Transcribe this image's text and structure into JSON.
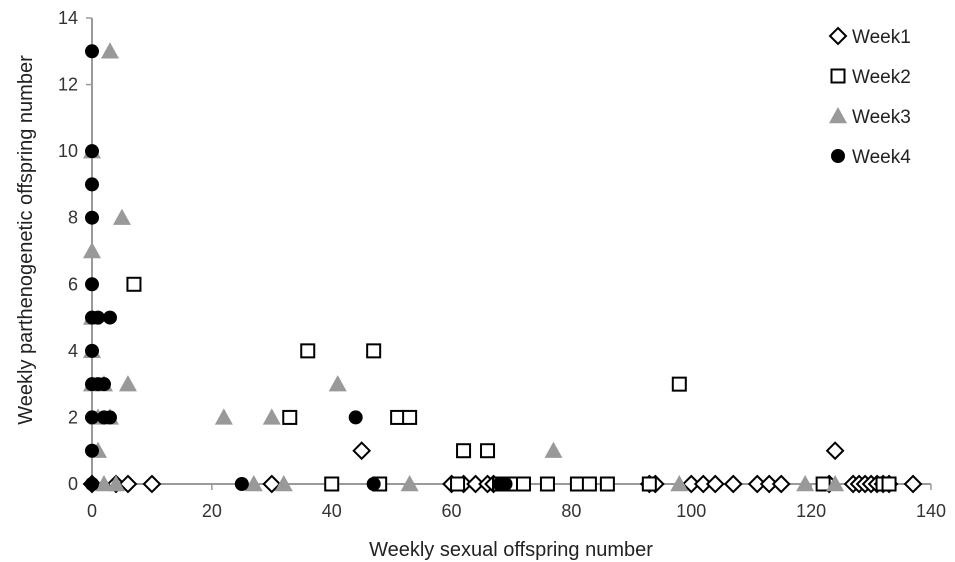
{
  "chart_data": {
    "type": "scatter",
    "xlabel": "Weekly sexual offspring number",
    "ylabel": "Weekly parthenogenetic offspring number",
    "xlim": [
      0,
      140
    ],
    "ylim": [
      0,
      14
    ],
    "xticks": [
      0,
      20,
      40,
      60,
      80,
      100,
      120,
      140
    ],
    "yticks": [
      0,
      2,
      4,
      6,
      8,
      10,
      12,
      14
    ],
    "grid": false,
    "legend_position": "top-right",
    "series": [
      {
        "name": "Week1",
        "marker": "diamond-open",
        "color": "#000000",
        "points": [
          [
            0,
            0
          ],
          [
            4,
            0
          ],
          [
            6,
            0
          ],
          [
            10,
            0
          ],
          [
            30,
            0
          ],
          [
            45,
            1
          ],
          [
            60,
            0
          ],
          [
            62,
            0
          ],
          [
            64,
            0
          ],
          [
            66,
            0
          ],
          [
            67,
            0
          ],
          [
            93,
            0
          ],
          [
            94,
            0
          ],
          [
            100,
            0
          ],
          [
            102,
            0
          ],
          [
            104,
            0
          ],
          [
            107,
            0
          ],
          [
            111,
            0
          ],
          [
            113,
            0
          ],
          [
            115,
            0
          ],
          [
            123,
            0
          ],
          [
            124,
            1
          ],
          [
            127,
            0
          ],
          [
            128,
            0
          ],
          [
            129,
            0
          ],
          [
            130,
            0
          ],
          [
            131,
            0
          ],
          [
            132,
            0
          ],
          [
            133,
            0
          ],
          [
            137,
            0
          ]
        ]
      },
      {
        "name": "Week2",
        "marker": "square-open",
        "color": "#000000",
        "points": [
          [
            7,
            6
          ],
          [
            33,
            2
          ],
          [
            36,
            4
          ],
          [
            40,
            0
          ],
          [
            47,
            4
          ],
          [
            48,
            0
          ],
          [
            51,
            2
          ],
          [
            53,
            2
          ],
          [
            61,
            0
          ],
          [
            62,
            1
          ],
          [
            66,
            1
          ],
          [
            68,
            0
          ],
          [
            70,
            0
          ],
          [
            72,
            0
          ],
          [
            76,
            0
          ],
          [
            81,
            0
          ],
          [
            83,
            0
          ],
          [
            86,
            0
          ],
          [
            93,
            0
          ],
          [
            98,
            3
          ],
          [
            122,
            0
          ],
          [
            132,
            0
          ],
          [
            133,
            0
          ]
        ]
      },
      {
        "name": "Week3",
        "marker": "triangle-filled",
        "color": "#999999",
        "points": [
          [
            0,
            10
          ],
          [
            0,
            7
          ],
          [
            0,
            5
          ],
          [
            0,
            4
          ],
          [
            0,
            3
          ],
          [
            1,
            2
          ],
          [
            1,
            1
          ],
          [
            2,
            3
          ],
          [
            2,
            0
          ],
          [
            3,
            13
          ],
          [
            3,
            2
          ],
          [
            4,
            0
          ],
          [
            5,
            8
          ],
          [
            6,
            3
          ],
          [
            22,
            2
          ],
          [
            27,
            0
          ],
          [
            30,
            2
          ],
          [
            32,
            0
          ],
          [
            41,
            3
          ],
          [
            53,
            0
          ],
          [
            77,
            1
          ],
          [
            98,
            0
          ],
          [
            119,
            0
          ],
          [
            124,
            0
          ]
        ]
      },
      {
        "name": "Week4",
        "marker": "circle-filled",
        "color": "#000000",
        "points": [
          [
            0,
            13
          ],
          [
            0,
            10
          ],
          [
            0,
            9
          ],
          [
            0,
            8
          ],
          [
            0,
            6
          ],
          [
            0,
            5
          ],
          [
            0,
            4
          ],
          [
            0,
            3
          ],
          [
            0,
            2
          ],
          [
            0,
            1
          ],
          [
            0,
            0
          ],
          [
            1,
            5
          ],
          [
            1,
            3
          ],
          [
            2,
            3
          ],
          [
            2,
            2
          ],
          [
            3,
            5
          ],
          [
            3,
            2
          ],
          [
            25,
            0
          ],
          [
            44,
            2
          ],
          [
            47,
            0
          ],
          [
            68,
            0
          ],
          [
            69,
            0
          ]
        ]
      }
    ]
  }
}
